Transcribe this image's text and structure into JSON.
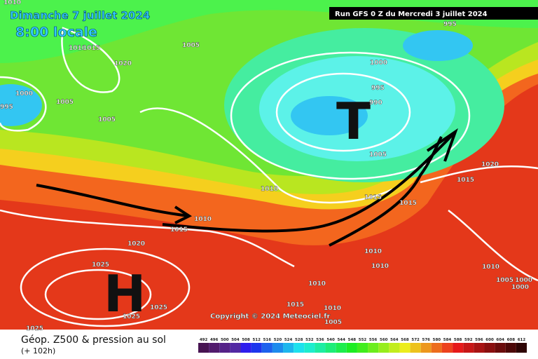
{
  "header": {
    "date": "Dimanche 7 juillet 2024",
    "time": "8:00 locale",
    "run": "Run GFS 0 Z du Mercredi 3 juillet 2024"
  },
  "map": {
    "low_label": "T",
    "high_label": "H",
    "copyright": "Copyright © 2024 Meteociel.fr",
    "isobar_labels": [
      "1010",
      "1010",
      "1015",
      "1020",
      "1005",
      "1000",
      "995",
      "1005",
      "1005",
      "1000",
      "995",
      "990",
      "995",
      "1005",
      "1010",
      "1015",
      "1015",
      "1020",
      "1015",
      "1010",
      "1015",
      "1020",
      "1025",
      "1010",
      "1010",
      "1010",
      "1015",
      "1010",
      "1005",
      "1025",
      "1025",
      "1025",
      "1010",
      "1005",
      "1000",
      "1000"
    ]
  },
  "legend": {
    "title": "Géop. Z500 & pression au sol",
    "subtitle": "(+ 102h)",
    "scale": [
      492,
      496,
      500,
      504,
      508,
      512,
      516,
      520,
      524,
      528,
      532,
      536,
      540,
      544,
      548,
      552,
      556,
      560,
      564,
      568,
      572,
      576,
      580,
      584,
      588,
      592,
      596,
      600,
      604,
      608,
      612
    ]
  }
}
